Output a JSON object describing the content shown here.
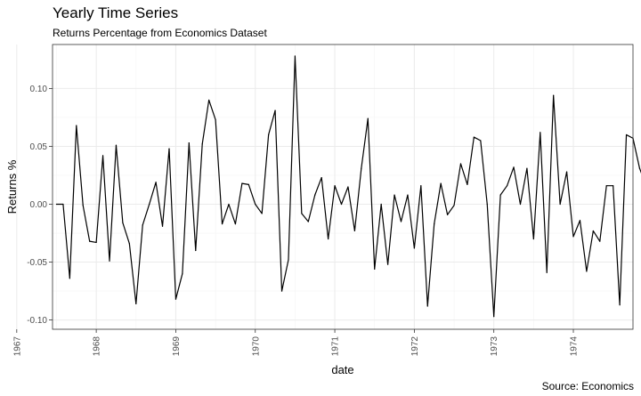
{
  "header": {
    "title": "Yearly Time Series",
    "subtitle": "Returns Percentage from Economics Dataset",
    "caption": "Source: Economics"
  },
  "chart_data": {
    "type": "line",
    "title": "Yearly Time Series",
    "subtitle": "Returns Percentage from Economics Dataset",
    "caption": "Source: Economics",
    "xlabel": "date",
    "ylabel": "Returns %",
    "x_start": "1967-07",
    "x_frequency": "monthly",
    "xlim": [
      1967.45,
      1974.75
    ],
    "ylim": [
      -0.108,
      0.138
    ],
    "x_ticks": [
      1967,
      1968,
      1969,
      1970,
      1971,
      1972,
      1973,
      1974
    ],
    "x_tick_labels": [
      "1967",
      "1968",
      "1969",
      "1970",
      "1971",
      "1972",
      "1973",
      "1974"
    ],
    "y_ticks": [
      -0.1,
      -0.05,
      0.0,
      0.05,
      0.1
    ],
    "y_tick_labels": [
      "-0.10",
      "-0.05",
      "0.00",
      "0.05",
      "0.10"
    ],
    "grid": true,
    "line_color": "#000000",
    "series": [
      {
        "values": [
          0.0,
          0.0,
          -0.064,
          0.068,
          -0.001,
          -0.032,
          -0.033,
          0.042,
          -0.049,
          0.051,
          -0.016,
          -0.034,
          -0.086,
          -0.018,
          0.0,
          0.019,
          -0.019,
          0.048,
          -0.082,
          -0.06,
          0.053,
          -0.04,
          0.052,
          0.09,
          0.073,
          -0.017,
          0.0,
          -0.017,
          0.018,
          0.017,
          0.0,
          -0.008,
          0.06,
          0.081,
          -0.075,
          -0.048,
          0.128,
          -0.008,
          -0.015,
          0.008,
          0.023,
          -0.03,
          0.016,
          0.0,
          0.015,
          -0.023,
          0.031,
          0.074,
          -0.056,
          0.0,
          -0.052,
          0.008,
          -0.015,
          0.008,
          -0.038,
          0.016,
          -0.088,
          -0.017,
          0.018,
          -0.009,
          -0.001,
          0.035,
          0.017,
          0.058,
          0.055,
          0.0,
          -0.097,
          0.008,
          0.016,
          0.032,
          0.0,
          0.031,
          -0.03,
          0.062,
          -0.059,
          0.094,
          0.0,
          0.028,
          -0.028,
          -0.014,
          -0.058,
          -0.023,
          -0.032,
          0.016,
          0.016,
          -0.087,
          0.06,
          0.057,
          0.031,
          0.016
        ]
      }
    ]
  }
}
